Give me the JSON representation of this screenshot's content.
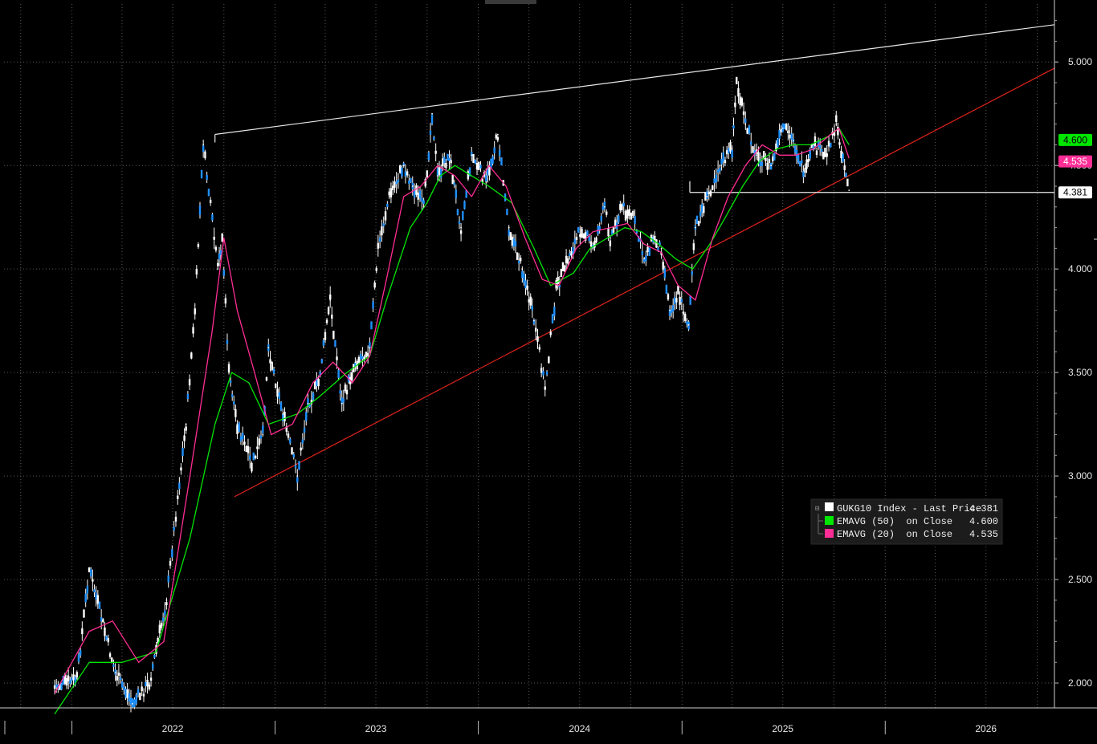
{
  "chart_data": {
    "type": "line",
    "title": "",
    "xlabel": "",
    "ylabel": "",
    "ylim": [
      1.88,
      5.28
    ],
    "xlim": [
      "2021-09-01",
      "2026-11-01"
    ],
    "grid": true,
    "legend_position": "bottom-right",
    "y_ticks": [
      "2.000",
      "2.500",
      "3.000",
      "3.500",
      "4.000",
      "4.500",
      "5.000"
    ],
    "x_year_labels": [
      {
        "label": "2022",
        "date": "2022-07-01"
      },
      {
        "label": "2023",
        "date": "2023-07-01"
      },
      {
        "label": "2024",
        "date": "2024-07-01"
      },
      {
        "label": "2025",
        "date": "2025-07-01"
      },
      {
        "label": "2026",
        "date": "2026-07-01"
      }
    ],
    "series": [
      {
        "name": "GUKG10 Index - Last Price",
        "color": "#ffffff",
        "last_value": "4.381",
        "x": [
          "2021-12-01",
          "2022-01-10",
          "2022-02-01",
          "2022-03-01",
          "2022-03-20",
          "2022-04-20",
          "2022-05-20",
          "2022-06-20",
          "2022-07-10",
          "2022-07-25",
          "2022-08-10",
          "2022-08-25",
          "2022-09-20",
          "2022-09-28",
          "2022-10-10",
          "2022-10-25",
          "2022-11-20",
          "2022-12-10",
          "2022-12-20",
          "2023-01-15",
          "2023-02-10",
          "2023-03-01",
          "2023-03-20",
          "2023-04-10",
          "2023-05-01",
          "2023-05-25",
          "2023-06-20",
          "2023-07-05",
          "2023-07-25",
          "2023-08-20",
          "2023-09-05",
          "2023-09-25",
          "2023-10-10",
          "2023-10-20",
          "2023-11-10",
          "2023-12-01",
          "2023-12-20",
          "2024-01-15",
          "2024-02-05",
          "2024-02-25",
          "2024-03-20",
          "2024-04-10",
          "2024-04-30",
          "2024-05-20",
          "2024-06-10",
          "2024-07-05",
          "2024-07-25",
          "2024-08-15",
          "2024-08-25",
          "2024-09-15",
          "2024-10-05",
          "2024-10-25",
          "2024-11-10",
          "2024-11-25",
          "2024-12-10",
          "2024-12-25",
          "2025-01-13",
          "2025-01-25",
          "2025-02-15",
          "2025-03-10",
          "2025-04-01",
          "2025-04-09",
          "2025-04-25",
          "2025-05-15",
          "2025-06-10",
          "2025-07-01",
          "2025-07-20",
          "2025-08-10",
          "2025-08-25",
          "2025-09-15",
          "2025-10-05",
          "2025-10-20",
          "2025-10-28"
        ],
        "values": [
          1.98,
          2.02,
          2.55,
          2.25,
          2.05,
          1.9,
          2.0,
          2.4,
          2.9,
          3.25,
          3.8,
          4.6,
          4.0,
          4.15,
          3.5,
          3.25,
          3.05,
          3.2,
          3.62,
          3.3,
          3.0,
          3.35,
          3.45,
          3.85,
          3.35,
          3.55,
          3.62,
          4.1,
          4.35,
          4.5,
          4.4,
          4.3,
          4.75,
          4.45,
          4.55,
          4.2,
          4.55,
          4.42,
          4.65,
          4.2,
          4.0,
          3.75,
          3.43,
          3.9,
          4.05,
          4.2,
          4.1,
          4.3,
          4.15,
          4.3,
          4.25,
          4.05,
          4.15,
          4.1,
          3.8,
          3.88,
          3.73,
          4.2,
          4.35,
          4.5,
          4.58,
          4.9,
          4.7,
          4.55,
          4.5,
          4.68,
          4.62,
          4.45,
          4.6,
          4.55,
          4.7,
          4.5,
          4.38
        ]
      },
      {
        "name": "EMAVG (50)  on Close",
        "color": "#00e600",
        "last_value": "4.600",
        "x": [
          "2021-12-01",
          "2022-02-01",
          "2022-04-01",
          "2022-06-01",
          "2022-08-01",
          "2022-09-15",
          "2022-10-15",
          "2022-11-15",
          "2022-12-20",
          "2023-02-10",
          "2023-03-20",
          "2023-05-10",
          "2023-06-20",
          "2023-07-20",
          "2023-09-01",
          "2023-10-01",
          "2023-10-25",
          "2023-11-20",
          "2023-12-20",
          "2024-01-20",
          "2024-03-01",
          "2024-04-10",
          "2024-05-10",
          "2024-06-20",
          "2024-07-20",
          "2024-08-20",
          "2024-09-20",
          "2024-10-20",
          "2024-11-20",
          "2024-12-20",
          "2025-01-20",
          "2025-02-20",
          "2025-03-20",
          "2025-04-20",
          "2025-05-20",
          "2025-06-20",
          "2025-07-20",
          "2025-08-20",
          "2025-09-20",
          "2025-10-10",
          "2025-10-28"
        ],
        "values": [
          1.85,
          2.1,
          2.1,
          2.15,
          2.7,
          3.25,
          3.5,
          3.45,
          3.25,
          3.3,
          3.38,
          3.5,
          3.58,
          3.85,
          4.2,
          4.32,
          4.45,
          4.5,
          4.45,
          4.4,
          4.32,
          4.1,
          3.92,
          3.98,
          4.1,
          4.15,
          4.2,
          4.18,
          4.12,
          4.05,
          4.0,
          4.12,
          4.25,
          4.4,
          4.52,
          4.58,
          4.6,
          4.6,
          4.64,
          4.68,
          4.6
        ]
      },
      {
        "name": "EMAVG (20)  on Close",
        "color": "#ff2d95",
        "last_value": "4.535",
        "x": [
          "2021-12-01",
          "2022-02-01",
          "2022-03-15",
          "2022-05-01",
          "2022-06-15",
          "2022-08-01",
          "2022-09-10",
          "2022-10-01",
          "2022-10-25",
          "2022-11-25",
          "2022-12-25",
          "2023-02-01",
          "2023-03-10",
          "2023-04-15",
          "2023-05-20",
          "2023-06-20",
          "2023-07-20",
          "2023-08-20",
          "2023-09-20",
          "2023-10-20",
          "2023-11-20",
          "2023-12-20",
          "2024-01-20",
          "2024-02-20",
          "2024-03-25",
          "2024-04-25",
          "2024-05-25",
          "2024-06-25",
          "2024-07-25",
          "2024-08-25",
          "2024-09-25",
          "2024-10-25",
          "2024-11-25",
          "2024-12-25",
          "2025-01-25",
          "2025-02-25",
          "2025-03-25",
          "2025-04-25",
          "2025-05-25",
          "2025-06-25",
          "2025-07-25",
          "2025-08-25",
          "2025-09-25",
          "2025-10-10",
          "2025-10-28"
        ],
        "values": [
          1.95,
          2.25,
          2.3,
          2.1,
          2.2,
          3.0,
          3.7,
          4.15,
          3.8,
          3.5,
          3.2,
          3.25,
          3.45,
          3.55,
          3.45,
          3.58,
          3.95,
          4.35,
          4.4,
          4.5,
          4.45,
          4.35,
          4.5,
          4.4,
          4.15,
          3.95,
          3.92,
          4.1,
          4.18,
          4.2,
          4.22,
          4.12,
          4.08,
          3.92,
          3.85,
          4.15,
          4.35,
          4.5,
          4.6,
          4.55,
          4.55,
          4.58,
          4.65,
          4.68,
          4.535
        ]
      }
    ],
    "annotations": {
      "upper_trendline": {
        "x": [
          "2022-09-15",
          "2026-11-01"
        ],
        "y": [
          4.65,
          5.18
        ]
      },
      "lower_trendline": {
        "x": [
          "2022-10-20",
          "2026-11-01"
        ],
        "y": [
          2.9,
          4.97
        ]
      },
      "support_line": {
        "x": [
          "2025-01-15",
          "2026-11-01"
        ],
        "y": [
          4.37,
          4.37
        ]
      },
      "value_tags": [
        {
          "value": 4.6,
          "label": "4.600",
          "bg": "#00e600",
          "fg": "#000000"
        },
        {
          "value": 4.535,
          "label": "4.535",
          "bg": "#ff2d95",
          "fg": "#ffffff"
        },
        {
          "value": 4.37,
          "label": "4.381",
          "bg": "#ffffff",
          "fg": "#000000"
        }
      ]
    }
  },
  "legend": {
    "items": [
      {
        "label": "GUKG10 Index - Last Price",
        "value": "4.381",
        "color": "#ffffff"
      },
      {
        "label": "EMAVG (50)  on Close",
        "value": "4.600",
        "color": "#00e600"
      },
      {
        "label": "EMAVG (20)  on Close",
        "value": "4.535",
        "color": "#ff2d95"
      }
    ]
  }
}
